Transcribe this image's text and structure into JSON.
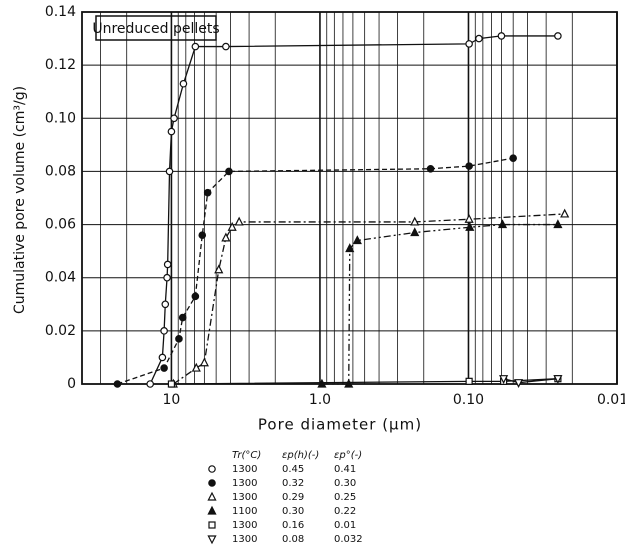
{
  "chart_data": {
    "type": "line",
    "annotation": "Unreduced pellets",
    "xlabel": "Pore  diameter   (μm)",
    "ylabel": "Cumulative  pore  volume  (cm³/g)",
    "xscale": "log",
    "xreversed": true,
    "xlim": [
      40,
      0.01
    ],
    "xticks": [
      10,
      {
        "value": 1,
        "label": "1.0"
      },
      {
        "value": 0.1,
        "label": "0.10"
      },
      {
        "value": 0.01,
        "label": "0.010"
      }
    ],
    "ylim": [
      0,
      0.14
    ],
    "yticks": [
      0,
      0.02,
      0.04,
      0.06,
      0.08,
      {
        "value": 0.1,
        "label": "0.10"
      },
      0.12,
      0.14
    ],
    "grid": true,
    "color": "#111111",
    "series": [
      {
        "marker": "circle-open",
        "dash": "solid",
        "x": [
          13.9,
          11.5,
          11.2,
          11.0,
          10.7,
          10.6,
          10.3,
          10,
          9.6,
          8.3,
          6.9,
          4.3,
          0.099,
          0.085,
          0.06,
          0.025
        ],
        "values": [
          0,
          0.01,
          0.02,
          0.03,
          0.04,
          0.045,
          0.08,
          0.095,
          0.1,
          0.113,
          0.127,
          0.127,
          0.128,
          0.13,
          0.131,
          0.131
        ]
      },
      {
        "marker": "circle-filled",
        "dash": "dashed",
        "x": [
          23.1,
          11.2,
          8.9,
          8.4,
          6.9,
          6.2,
          5.7,
          4.1,
          0.18,
          0.099,
          0.05
        ],
        "values": [
          0,
          0.006,
          0.017,
          0.025,
          0.033,
          0.056,
          0.072,
          0.08,
          0.081,
          0.082,
          0.085
        ]
      },
      {
        "marker": "triangle-open",
        "dash": "dashdot",
        "x": [
          9.7,
          6.8,
          6.0,
          4.8,
          4.3,
          3.9,
          3.5,
          0.23,
          0.099,
          0.0225
        ],
        "values": [
          0,
          0.006,
          0.008,
          0.043,
          0.055,
          0.059,
          0.061,
          0.061,
          0.062,
          0.064
        ]
      },
      {
        "marker": "triangle-filled",
        "dash": "dashdotdot",
        "x": [
          0.97,
          0.64,
          0.63,
          0.56,
          0.23,
          0.098,
          0.059,
          0.025
        ],
        "values": [
          0,
          0,
          0.051,
          0.054,
          0.057,
          0.059,
          0.06,
          0.06
        ]
      },
      {
        "marker": "square-open",
        "dash": "solid",
        "x": [
          10,
          0.099,
          0.058,
          0.025
        ],
        "values": [
          0,
          0.001,
          0.001,
          0.002
        ]
      },
      {
        "marker": "triangle-down-open",
        "dash": "solid",
        "x": [
          0.058,
          0.046,
          0.025
        ],
        "values": [
          0.002,
          0.0005,
          0.002
        ]
      }
    ],
    "legend": {
      "headers": [
        "Tr(°C)",
        "εp(h)(-)",
        "εp°(-)"
      ],
      "rows": [
        [
          "1300",
          "0.45",
          "0.41"
        ],
        [
          "1300",
          "0.32",
          "0.30"
        ],
        [
          "1300",
          "0.29",
          "0.25"
        ],
        [
          "1100",
          "0.30",
          "0.22"
        ],
        [
          "1300",
          "0.16",
          "0.01"
        ],
        [
          "1300",
          "0.08",
          "0.032"
        ]
      ]
    }
  }
}
